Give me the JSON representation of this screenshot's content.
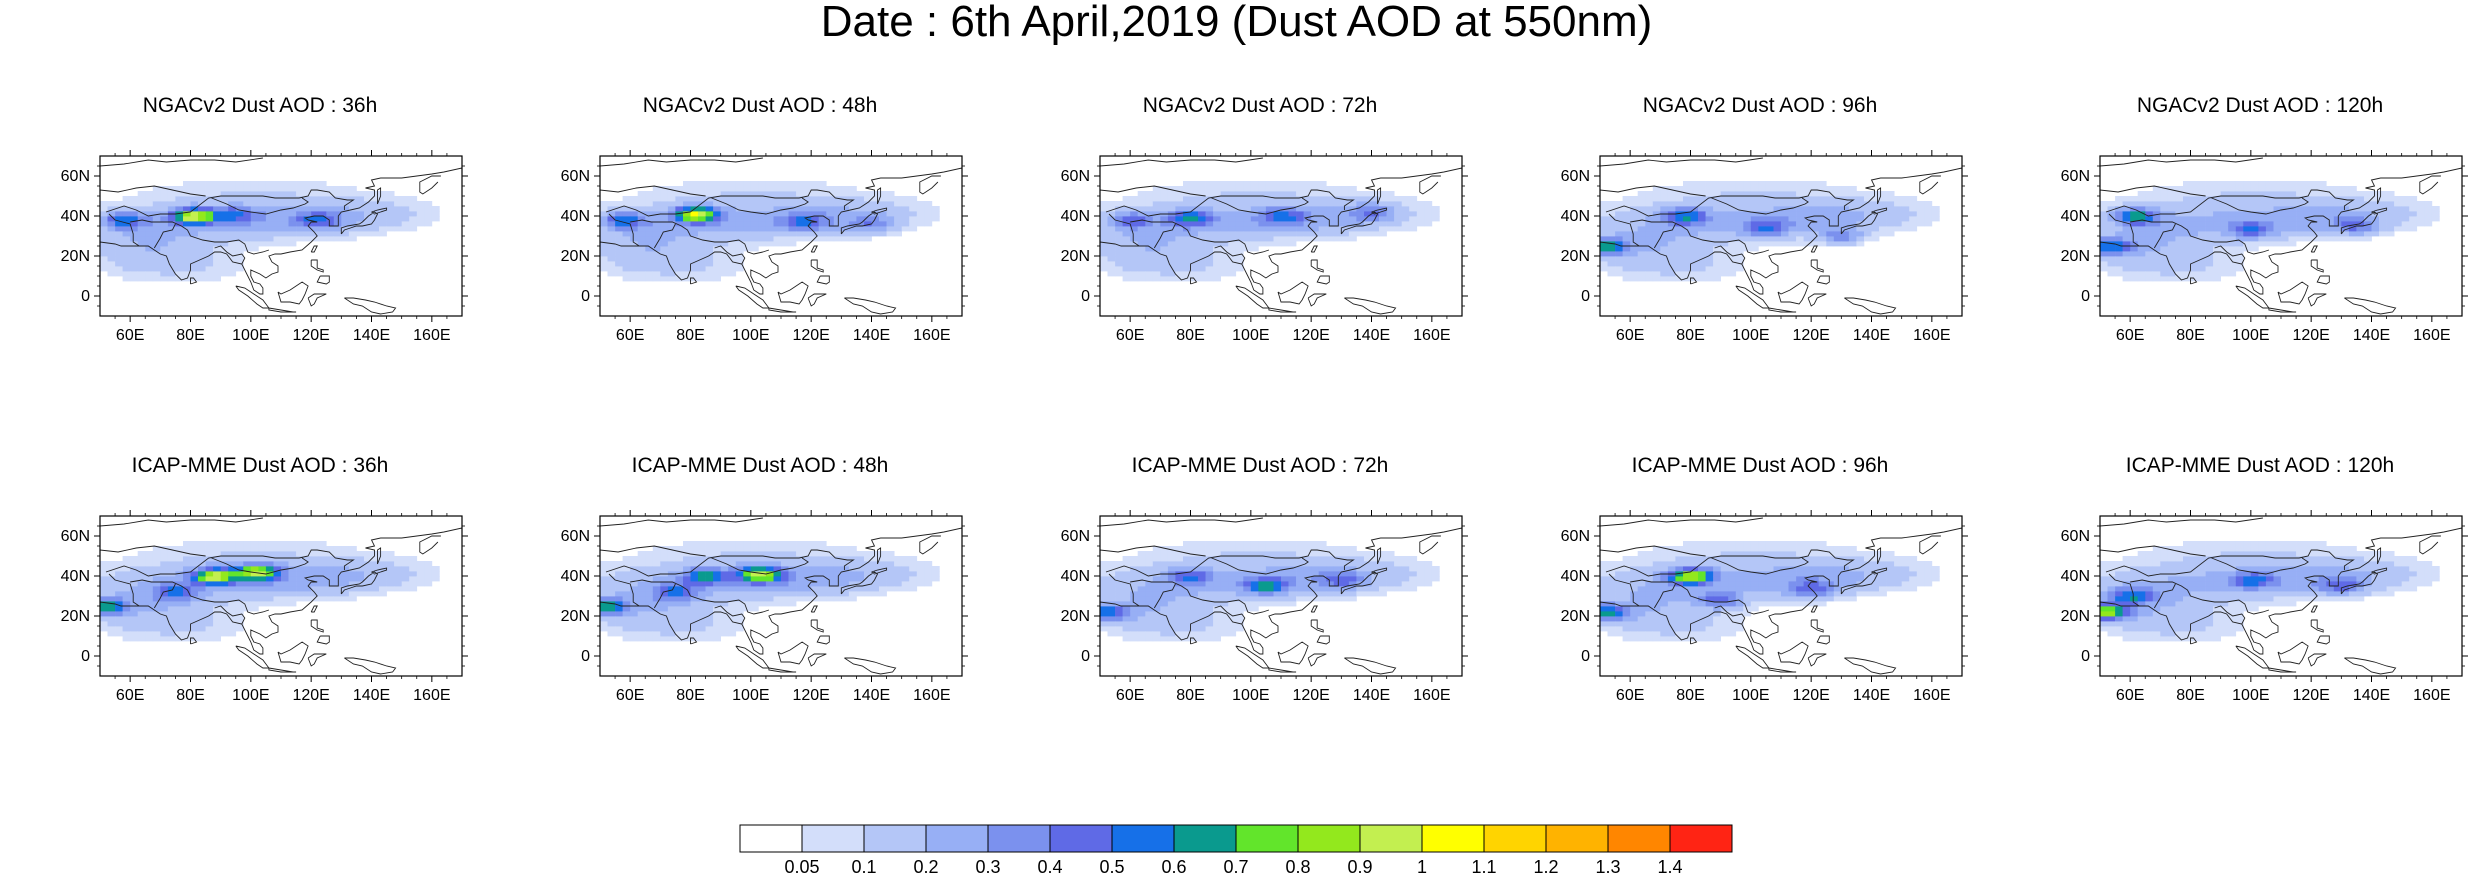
{
  "title": "Date : 6th April,2019 (Dust AOD at 550nm)",
  "map_domain": {
    "lon_range": [
      50,
      170
    ],
    "lat_range": [
      -10,
      70
    ]
  },
  "axes": {
    "lon_ticks": [
      "60E",
      "80E",
      "100E",
      "120E",
      "140E",
      "160E"
    ],
    "lat_ticks": [
      "60N",
      "40N",
      "20N",
      "0"
    ]
  },
  "colors": {
    "bins": [
      "#ffffff",
      "#d3defa",
      "#b4c6f7",
      "#97aff5",
      "#7b91ee",
      "#5f6ae6",
      "#1670e8",
      "#0a9a8e",
      "#62e52b",
      "#93e81d",
      "#c3ef50",
      "#ffff00",
      "#ffd400",
      "#ffb300",
      "#ff8600",
      "#ff2414"
    ],
    "coast": "#222222"
  },
  "colorbar": {
    "labels": [
      "0.05",
      "0.1",
      "0.2",
      "0.3",
      "0.4",
      "0.5",
      "0.6",
      "0.7",
      "0.8",
      "0.9",
      "1",
      "1.1",
      "1.2",
      "1.3",
      "1.4"
    ]
  },
  "panels": [
    {
      "title": "NGACv2 Dust AOD : 36h",
      "hotspots": [
        {
          "lon": 58,
          "lat": 38,
          "val": 0.45
        },
        {
          "lon": 81,
          "lat": 40,
          "val": 0.85
        },
        {
          "lon": 95,
          "lat": 41,
          "val": 0.35
        },
        {
          "lon": 122,
          "lat": 38,
          "val": 0.3
        }
      ]
    },
    {
      "title": "NGACv2 Dust AOD : 48h",
      "hotspots": [
        {
          "lon": 58,
          "lat": 38,
          "val": 0.45
        },
        {
          "lon": 82,
          "lat": 41,
          "val": 0.85
        },
        {
          "lon": 118,
          "lat": 37,
          "val": 0.3
        },
        {
          "lon": 140,
          "lat": 36,
          "val": 0.25
        }
      ]
    },
    {
      "title": "NGACv2 Dust AOD : 72h",
      "hotspots": [
        {
          "lon": 60,
          "lat": 38,
          "val": 0.35
        },
        {
          "lon": 80,
          "lat": 39,
          "val": 0.45
        },
        {
          "lon": 110,
          "lat": 40,
          "val": 0.35
        },
        {
          "lon": 140,
          "lat": 42,
          "val": 0.25
        }
      ]
    },
    {
      "title": "NGACv2 Dust AOD : 96h",
      "hotspots": [
        {
          "lon": 52,
          "lat": 25,
          "val": 0.55
        },
        {
          "lon": 78,
          "lat": 40,
          "val": 0.45
        },
        {
          "lon": 105,
          "lat": 34,
          "val": 0.35
        },
        {
          "lon": 130,
          "lat": 30,
          "val": 0.3
        }
      ]
    },
    {
      "title": "NGACv2 Dust AOD : 120h",
      "hotspots": [
        {
          "lon": 53,
          "lat": 25,
          "val": 0.5
        },
        {
          "lon": 62,
          "lat": 40,
          "val": 0.55
        },
        {
          "lon": 100,
          "lat": 33,
          "val": 0.35
        },
        {
          "lon": 135,
          "lat": 35,
          "val": 0.3
        }
      ]
    },
    {
      "title": "ICAP-MME Dust AOD : 36h",
      "hotspots": [
        {
          "lon": 52,
          "lat": 25,
          "val": 0.55
        },
        {
          "lon": 88,
          "lat": 40,
          "val": 0.8
        },
        {
          "lon": 102,
          "lat": 42,
          "val": 0.75
        },
        {
          "lon": 75,
          "lat": 32,
          "val": 0.35
        }
      ]
    },
    {
      "title": "ICAP-MME Dust AOD : 48h",
      "hotspots": [
        {
          "lon": 52,
          "lat": 25,
          "val": 0.55
        },
        {
          "lon": 85,
          "lat": 40,
          "val": 0.5
        },
        {
          "lon": 103,
          "lat": 41,
          "val": 0.75
        },
        {
          "lon": 75,
          "lat": 32,
          "val": 0.35
        }
      ]
    },
    {
      "title": "ICAP-MME Dust AOD : 72h",
      "hotspots": [
        {
          "lon": 52,
          "lat": 22,
          "val": 0.5
        },
        {
          "lon": 80,
          "lat": 40,
          "val": 0.35
        },
        {
          "lon": 105,
          "lat": 35,
          "val": 0.45
        },
        {
          "lon": 130,
          "lat": 38,
          "val": 0.25
        }
      ]
    },
    {
      "title": "ICAP-MME Dust AOD : 96h",
      "hotspots": [
        {
          "lon": 52,
          "lat": 22,
          "val": 0.55
        },
        {
          "lon": 80,
          "lat": 40,
          "val": 0.75
        },
        {
          "lon": 90,
          "lat": 28,
          "val": 0.35
        },
        {
          "lon": 120,
          "lat": 33,
          "val": 0.3
        }
      ]
    },
    {
      "title": "ICAP-MME Dust AOD : 120h",
      "hotspots": [
        {
          "lon": 52,
          "lat": 22,
          "val": 0.75
        },
        {
          "lon": 60,
          "lat": 30,
          "val": 0.45
        },
        {
          "lon": 100,
          "lat": 38,
          "val": 0.35
        },
        {
          "lon": 130,
          "lat": 35,
          "val": 0.3
        }
      ]
    }
  ]
}
